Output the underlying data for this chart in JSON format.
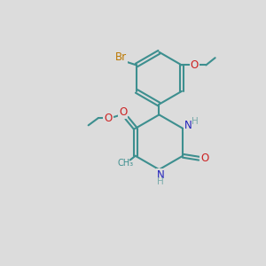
{
  "background_color": "#dcdcdc",
  "bond_color": "#3d8f8f",
  "bond_width": 1.5,
  "atom_colors": {
    "N": "#2222bb",
    "O": "#cc2222",
    "Br": "#bb7700",
    "H": "#7aabab"
  },
  "font_size_atom": 8.5,
  "font_size_label": 7.5
}
